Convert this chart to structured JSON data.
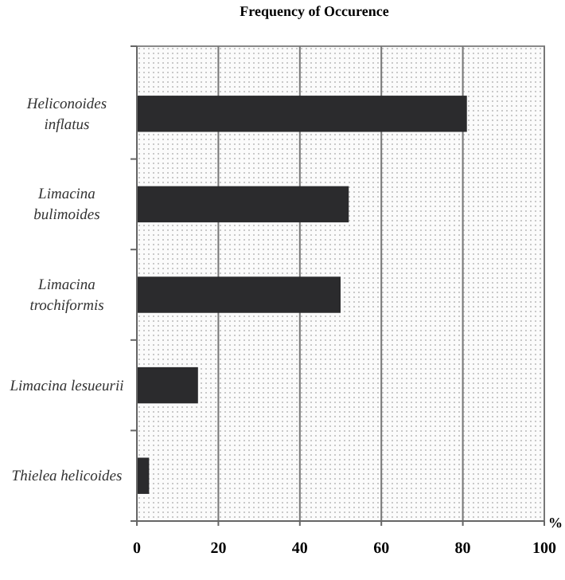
{
  "chart_data": {
    "type": "bar",
    "orientation": "horizontal",
    "title": "Frequency of Occurence",
    "xlabel": "%",
    "categories": [
      "Heliconoides inflatus",
      "Limacina bulimoides",
      "Limacina trochiformis",
      "Limacina lesueurii",
      "Thielea helicoides"
    ],
    "values": [
      81,
      52,
      50,
      15,
      3
    ],
    "color": "#2b2b2d",
    "xlim": [
      0,
      100
    ],
    "xticks": [
      0,
      20,
      40,
      60,
      80,
      100
    ],
    "grid": "x"
  }
}
